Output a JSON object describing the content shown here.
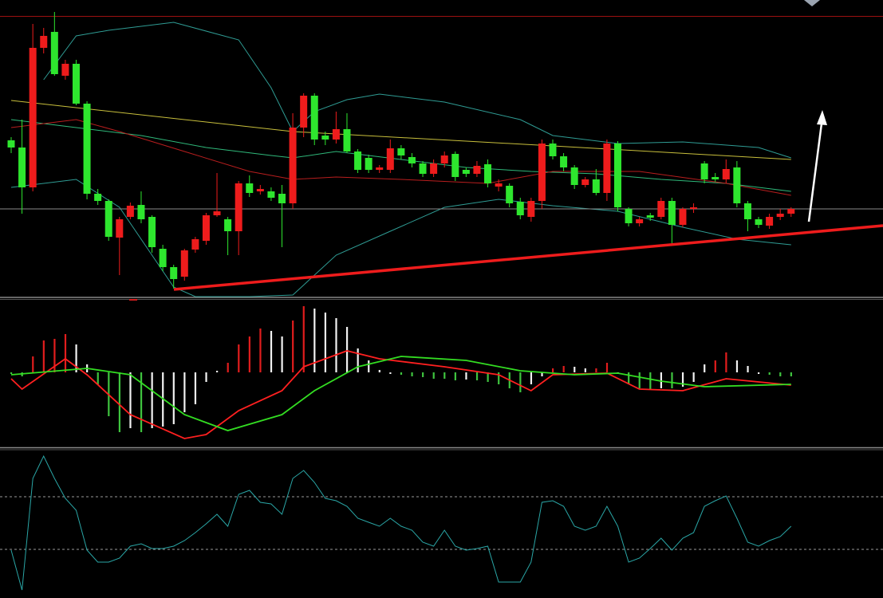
{
  "chart_data": [
    {
      "type": "candlestick",
      "ylim": [
        0,
        372
      ],
      "up_color": "#ee1c1c",
      "down_color": "#2ee62e",
      "price_line_color": "#8a8a8a",
      "open": [
        196,
        187,
        137,
        312,
        332,
        277,
        292,
        242,
        129,
        120,
        74,
        100,
        115,
        100,
        60,
        37,
        25,
        59,
        70,
        102,
        97,
        82,
        142,
        132,
        132,
        129,
        117,
        212,
        252,
        202,
        197,
        210,
        182,
        174,
        159,
        159,
        186,
        175,
        167,
        154,
        167,
        179,
        159,
        154,
        166,
        138,
        139,
        119,
        100,
        120,
        192,
        176,
        162,
        140,
        147,
        130,
        192,
        110,
        92,
        102,
        100,
        120,
        90,
        110,
        167,
        150,
        147,
        162,
        117,
        97,
        89,
        100,
        104
      ],
      "close": [
        187,
        137,
        312,
        327,
        279,
        292,
        242,
        129,
        120,
        75,
        97,
        114,
        97,
        62,
        37,
        22,
        58,
        72,
        102,
        107,
        82,
        142,
        130,
        135,
        124,
        117,
        212,
        252,
        197,
        197,
        210,
        182,
        159,
        159,
        162,
        186,
        177,
        167,
        154,
        167,
        177,
        150,
        154,
        164,
        142,
        142,
        117,
        102,
        120,
        192,
        176,
        162,
        140,
        147,
        130,
        192,
        112,
        92,
        97,
        99,
        120,
        90,
        110,
        112,
        147,
        147,
        160,
        117,
        97,
        90,
        100,
        104,
        110
      ],
      "high": [
        200,
        222,
        342,
        337,
        357,
        297,
        297,
        245,
        135,
        122,
        100,
        118,
        132,
        102,
        65,
        40,
        60,
        75,
        105,
        155,
        100,
        145,
        152,
        140,
        137,
        140,
        230,
        255,
        255,
        207,
        232,
        230,
        185,
        178,
        165,
        197,
        190,
        180,
        170,
        172,
        182,
        182,
        162,
        170,
        172,
        147,
        142,
        124,
        124,
        197,
        197,
        180,
        165,
        150,
        160,
        197,
        195,
        112,
        100,
        105,
        124,
        124,
        112,
        117,
        170,
        155,
        172,
        170,
        120,
        100,
        104,
        110,
        112
      ],
      "low": [
        180,
        104,
        132,
        305,
        277,
        272,
        240,
        122,
        115,
        70,
        27,
        97,
        92,
        55,
        32,
        10,
        20,
        55,
        65,
        100,
        52,
        52,
        125,
        128,
        120,
        62,
        110,
        200,
        190,
        190,
        192,
        180,
        155,
        155,
        155,
        155,
        172,
        162,
        150,
        150,
        162,
        145,
        150,
        150,
        137,
        132,
        112,
        97,
        94,
        110,
        172,
        157,
        135,
        137,
        127,
        120,
        107,
        88,
        88,
        95,
        97,
        67,
        87,
        105,
        142,
        144,
        142,
        112,
        82,
        86,
        85,
        96,
        100
      ],
      "overlays": [
        {
          "color": "#c8bf3c",
          "x": [
            0,
            26,
            50,
            72
          ],
          "values": [
            246,
            207,
            189,
            172
          ]
        },
        {
          "color": "#2f9c94",
          "x": [
            3,
            6,
            9,
            15,
            21,
            24,
            26,
            28,
            31,
            34,
            40,
            47,
            50,
            56,
            62,
            69,
            72
          ],
          "values": [
            272,
            327,
            334,
            344,
            322,
            262,
            207,
            232,
            247,
            254,
            244,
            222,
            202,
            192,
            194,
            187,
            174
          ]
        },
        {
          "color": "#2f9c94",
          "x": [
            0,
            6,
            10,
            15,
            17,
            22,
            26,
            30,
            35,
            40,
            45,
            50,
            56,
            62,
            67,
            72
          ],
          "values": [
            137,
            147,
            112,
            12,
            0,
            0,
            2,
            52,
            82,
            112,
            122,
            114,
            107,
            87,
            72,
            65
          ]
        },
        {
          "color": "#2fb87a",
          "x": [
            0,
            6,
            12,
            18,
            24,
            26,
            30,
            36,
            42,
            48,
            54,
            60,
            66,
            72
          ],
          "values": [
            222,
            212,
            202,
            187,
            177,
            174,
            182,
            172,
            162,
            157,
            154,
            147,
            142,
            132
          ]
        },
        {
          "color": "#b81e1e",
          "x": [
            0,
            6,
            10,
            16,
            22,
            26,
            30,
            36,
            44,
            50,
            58,
            66,
            72
          ],
          "values": [
            212,
            222,
            207,
            182,
            157,
            147,
            150,
            147,
            142,
            157,
            157,
            142,
            127
          ]
        }
      ]
    },
    {
      "type": "macd",
      "ylim": [
        -93,
        92
      ],
      "up_color": "#e21d1d",
      "down_color": "#3fc43f",
      "fade_color": "#f2f2f2",
      "values": [
        -2,
        -5,
        20,
        40,
        42,
        48,
        35,
        10,
        -15,
        -55,
        -75,
        -70,
        -75,
        -70,
        -68,
        -65,
        -50,
        -40,
        -12,
        2,
        12,
        35,
        45,
        55,
        52,
        45,
        65,
        83,
        80,
        75,
        68,
        57,
        30,
        15,
        3,
        -2,
        -3,
        -5,
        -6,
        -8,
        -8,
        -10,
        -9,
        -10,
        -12,
        -15,
        -20,
        -25,
        -15,
        -5,
        5,
        8,
        7,
        5,
        5,
        12,
        -2,
        -15,
        -20,
        -22,
        -20,
        -20,
        -18,
        -12,
        10,
        15,
        25,
        15,
        8,
        -2,
        -3,
        -5,
        -5
      ],
      "lines": [
        {
          "color": "#ff2020",
          "x": [
            0,
            1,
            5,
            7,
            11,
            16,
            18,
            21,
            25,
            27,
            31,
            34,
            40,
            45,
            48,
            50,
            55,
            58,
            62,
            66,
            72
          ],
          "values": [
            -8,
            -21,
            17,
            -3,
            -53,
            -83,
            -78,
            -48,
            -23,
            7,
            27,
            17,
            7,
            -3,
            -23,
            -3,
            -1,
            -21,
            -23,
            -8,
            -16
          ]
        },
        {
          "color": "#33dd22",
          "x": [
            0,
            7,
            11,
            16,
            20,
            25,
            28,
            32,
            36,
            42,
            47,
            52,
            56,
            60,
            64,
            72
          ],
          "values": [
            -3,
            5,
            -3,
            -53,
            -73,
            -53,
            -23,
            7,
            20,
            15,
            2,
            -3,
            -1,
            -11,
            -18,
            -15
          ]
        }
      ]
    },
    {
      "type": "line",
      "ylim": [
        0,
        185
      ],
      "color": "#2aa6a6",
      "levels": [
        61,
        127
      ],
      "values": [
        60,
        10,
        150,
        178,
        150,
        125,
        110,
        60,
        45,
        45,
        50,
        65,
        68,
        62,
        62,
        65,
        72,
        82,
        93,
        105,
        90,
        130,
        135,
        120,
        118,
        105,
        150,
        160,
        145,
        125,
        122,
        115,
        100,
        95,
        90,
        100,
        90,
        85,
        70,
        65,
        85,
        65,
        60,
        62,
        65,
        20,
        20,
        20,
        45,
        120,
        122,
        115,
        90,
        85,
        90,
        115,
        90,
        45,
        50,
        62,
        75,
        60,
        75,
        82,
        115,
        122,
        128,
        100,
        70,
        65,
        72,
        77,
        90
      ]
    }
  ]
}
